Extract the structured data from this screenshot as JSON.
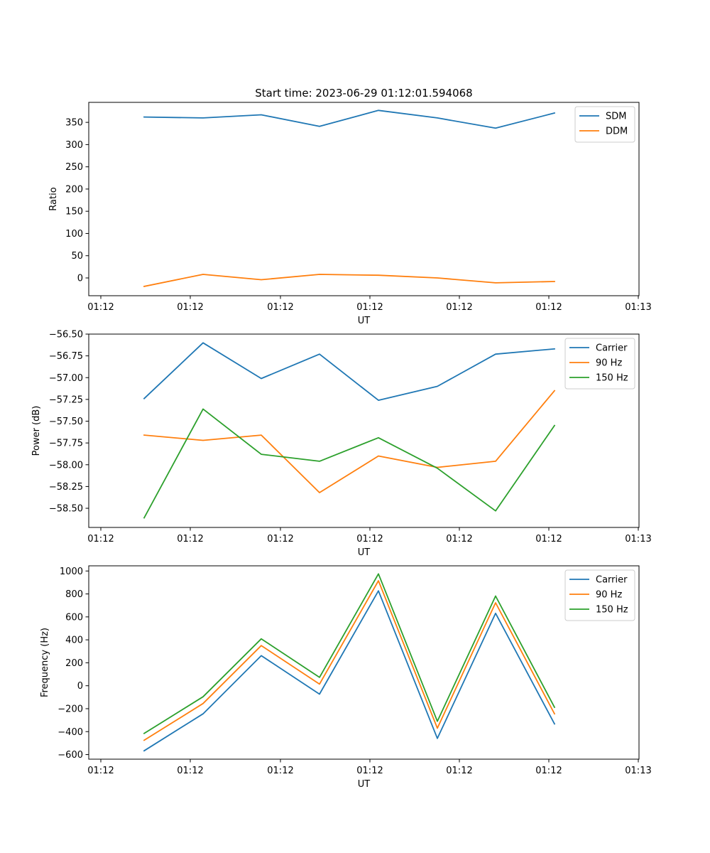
{
  "title": "Start time: 2023-06-29 01:12:01.594068",
  "colors": {
    "blue": "#1f77b4",
    "orange": "#ff7f0e",
    "green": "#2ca02c"
  },
  "chart_data": [
    {
      "type": "line",
      "ylabel": "Ratio",
      "xlabel": "UT",
      "xticklabels": [
        "01:12",
        "01:12",
        "01:12",
        "01:12",
        "01:12",
        "01:12",
        "01:13"
      ],
      "ylim": [
        -40,
        395
      ],
      "yticks": [
        0,
        50,
        100,
        150,
        200,
        250,
        300,
        350
      ],
      "legend_position": "upper right",
      "series": [
        {
          "name": "SDM",
          "color": "#1f77b4",
          "values": [
            362,
            360,
            367,
            341,
            377,
            360,
            337,
            371
          ]
        },
        {
          "name": "DDM",
          "color": "#ff7f0e",
          "values": [
            -19,
            8,
            -4,
            8,
            6,
            0,
            -11,
            -8
          ]
        }
      ]
    },
    {
      "type": "line",
      "ylabel": "Power (dB)",
      "xlabel": "UT",
      "xticklabels": [
        "01:12",
        "01:12",
        "01:12",
        "01:12",
        "01:12",
        "01:12",
        "01:13"
      ],
      "ylim": [
        -58.72,
        -56.5
      ],
      "yticks": [
        -58.5,
        -58.25,
        -58.0,
        -57.75,
        -57.5,
        -57.25,
        -57.0,
        -56.75,
        -56.5
      ],
      "yticklabels": [
        "−58.50",
        "−58.25",
        "−58.00",
        "−57.75",
        "−57.50",
        "−57.25",
        "−57.00",
        "−56.75",
        "−56.50"
      ],
      "legend_position": "upper right",
      "series": [
        {
          "name": "Carrier",
          "color": "#1f77b4",
          "values": [
            -57.24,
            -56.6,
            -57.01,
            -56.73,
            -57.26,
            -57.1,
            -56.73,
            -56.67
          ]
        },
        {
          "name": "90 Hz",
          "color": "#ff7f0e",
          "values": [
            -57.66,
            -57.72,
            -57.66,
            -58.32,
            -57.9,
            -58.03,
            -57.96,
            -57.15
          ]
        },
        {
          "name": "150 Hz",
          "color": "#2ca02c",
          "values": [
            -58.61,
            -57.36,
            -57.88,
            -57.96,
            -57.69,
            -58.04,
            -58.53,
            -57.55
          ]
        }
      ]
    },
    {
      "type": "line",
      "ylabel": "Frequency (Hz)",
      "xlabel": "UT",
      "xticklabels": [
        "01:12",
        "01:12",
        "01:12",
        "01:12",
        "01:12",
        "01:12",
        "01:13"
      ],
      "ylim": [
        -640,
        1045
      ],
      "yticks": [
        -600,
        -400,
        -200,
        0,
        200,
        400,
        600,
        800,
        1000
      ],
      "yticklabels": [
        "−600",
        "−400",
        "−200",
        "0",
        "200",
        "400",
        "600",
        "800",
        "1000"
      ],
      "legend_position": "upper right",
      "series": [
        {
          "name": "Carrier",
          "color": "#1f77b4",
          "values": [
            -567,
            -245,
            262,
            -73,
            827,
            -459,
            631,
            -333
          ]
        },
        {
          "name": "90 Hz",
          "color": "#ff7f0e",
          "values": [
            -475,
            -155,
            350,
            14,
            915,
            -370,
            723,
            -245
          ]
        },
        {
          "name": "150 Hz",
          "color": "#2ca02c",
          "values": [
            -416,
            -96,
            409,
            73,
            975,
            -310,
            782,
            -188
          ]
        }
      ]
    }
  ]
}
